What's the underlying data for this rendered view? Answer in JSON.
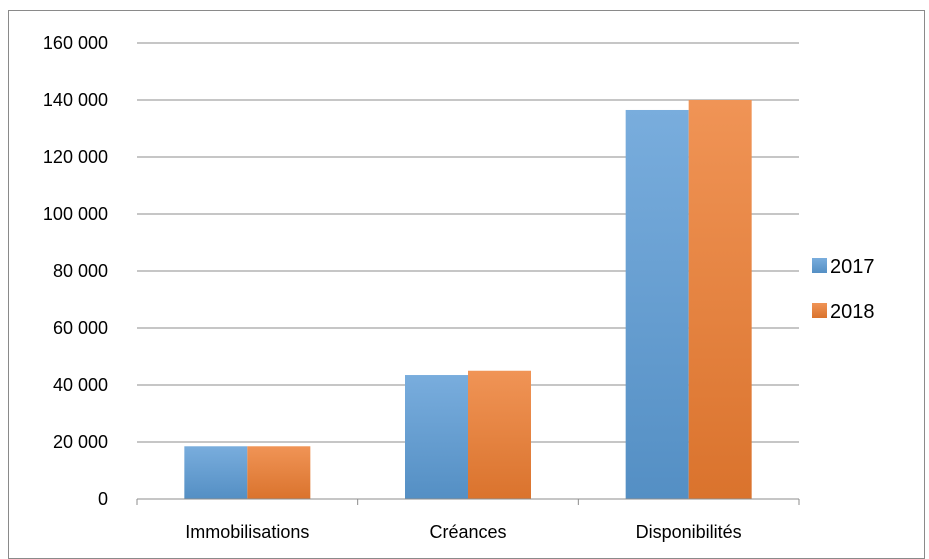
{
  "chart_data": {
    "type": "bar",
    "title": "",
    "xlabel": "",
    "ylabel": "",
    "categories": [
      "Immobilisations",
      "Créances",
      "Disponibilités"
    ],
    "series": [
      {
        "name": "2017",
        "values": [
          18500,
          43500,
          136500
        ],
        "color": "#5B9BD5"
      },
      {
        "name": "2018",
        "values": [
          18500,
          45000,
          140000
        ],
        "color": "#ED7D31"
      }
    ],
    "ylim": [
      0,
      160000
    ],
    "yticks": [
      0,
      20000,
      40000,
      60000,
      80000,
      100000,
      120000,
      140000,
      160000
    ],
    "ytick_labels": [
      "0",
      "20 000",
      "40 000",
      "60 000",
      "80 000",
      "100 000",
      "120 000",
      "140 000",
      "160 000"
    ],
    "grid": true,
    "legend_position": "right"
  }
}
